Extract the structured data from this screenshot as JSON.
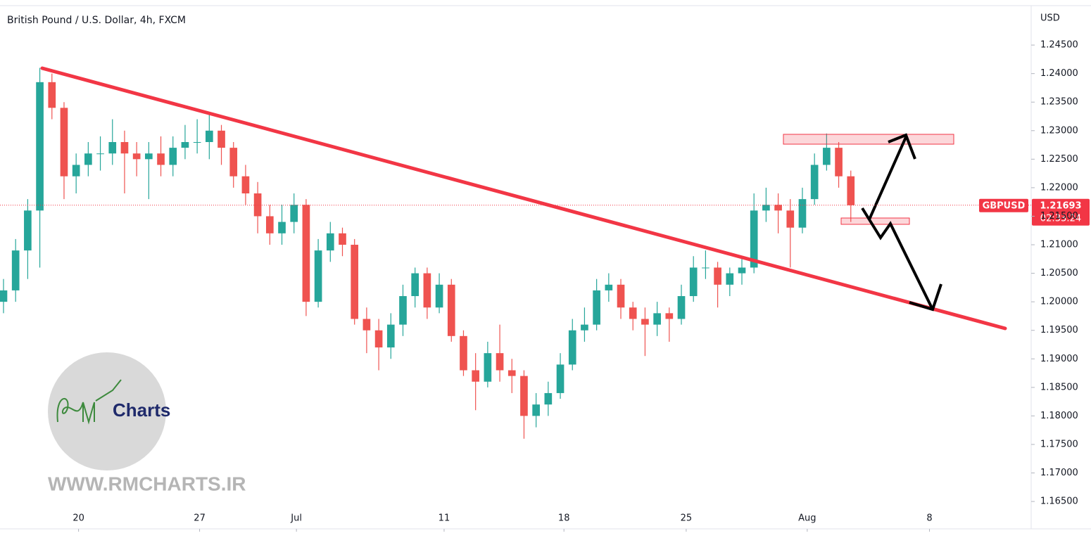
{
  "chart_data": {
    "type": "candlestick",
    "title": "British Pound / U.S. Dollar, 4h, FXCM",
    "y_axis_unit": "USD",
    "symbol": "GBPUSD",
    "countdown": "02:33:24",
    "logo_text": "Charts",
    "watermark": "WWW.RMCHARTS.IR",
    "up_color": "#26a69a",
    "down_color": "#ef5350",
    "grid": false,
    "xlim": [
      -0.29,
      84.9
    ],
    "xticks": [
      {
        "value": 6.2,
        "label": "20"
      },
      {
        "value": 16.2,
        "label": "27"
      },
      {
        "value": 24.2,
        "label": "Jul"
      },
      {
        "value": 36.4,
        "label": "11"
      },
      {
        "value": 46.3,
        "label": "18"
      },
      {
        "value": 56.4,
        "label": "25"
      },
      {
        "value": 66.4,
        "label": "Aug"
      },
      {
        "value": 76.5,
        "label": "8"
      }
    ],
    "ylim": [
      1.1639,
      1.2529
    ],
    "yticks": [
      {
        "value": 1.245,
        "label": "1.24500"
      },
      {
        "value": 1.24,
        "label": "1.24000"
      },
      {
        "value": 1.235,
        "label": "1.23500"
      },
      {
        "value": 1.23,
        "label": "1.23000"
      },
      {
        "value": 1.225,
        "label": "1.22500"
      },
      {
        "value": 1.22,
        "label": "1.22000"
      },
      {
        "value": 1.215,
        "label": "1.21500"
      },
      {
        "value": 1.21,
        "label": "1.21000"
      },
      {
        "value": 1.205,
        "label": "1.20500"
      },
      {
        "value": 1.2,
        "label": "1.20000"
      },
      {
        "value": 1.195,
        "label": "1.19500"
      },
      {
        "value": 1.19,
        "label": "1.19000"
      },
      {
        "value": 1.185,
        "label": "1.18500"
      },
      {
        "value": 1.18,
        "label": "1.18000"
      },
      {
        "value": 1.175,
        "label": "1.17500"
      },
      {
        "value": 1.17,
        "label": "1.17000"
      },
      {
        "value": 1.165,
        "label": "1.16500"
      }
    ],
    "series": [
      {
        "name": "GBPUSD",
        "open": [
          1.2,
          1.202,
          1.209,
          1.216,
          1.2385,
          1.234,
          1.222,
          1.224,
          1.226,
          1.226,
          1.228,
          1.226,
          1.225,
          1.226,
          1.224,
          1.227,
          1.228,
          1.228,
          1.23,
          1.227,
          1.222,
          1.219,
          1.215,
          1.212,
          1.214,
          1.217,
          1.2,
          1.209,
          1.212,
          1.21,
          1.197,
          1.195,
          1.192,
          1.196,
          1.201,
          1.205,
          1.199,
          1.203,
          1.194,
          1.188,
          1.186,
          1.191,
          1.188,
          1.187,
          1.18,
          1.182,
          1.184,
          1.189,
          1.195,
          1.196,
          1.202,
          1.203,
          1.199,
          1.197,
          1.196,
          1.198,
          1.197,
          1.201,
          1.206,
          1.206,
          1.203,
          1.205,
          1.206,
          1.216,
          1.217,
          1.216,
          1.213,
          1.218,
          1.224,
          1.227,
          1.222
        ],
        "high": [
          1.204,
          1.211,
          1.218,
          1.241,
          1.24,
          1.235,
          1.226,
          1.228,
          1.229,
          1.232,
          1.23,
          1.228,
          1.228,
          1.229,
          1.229,
          1.231,
          1.232,
          1.233,
          1.231,
          1.228,
          1.224,
          1.221,
          1.217,
          1.217,
          1.219,
          1.218,
          1.211,
          1.214,
          1.213,
          1.211,
          1.199,
          1.197,
          1.198,
          1.203,
          1.206,
          1.206,
          1.205,
          1.204,
          1.195,
          1.191,
          1.193,
          1.196,
          1.19,
          1.188,
          1.184,
          1.186,
          1.191,
          1.197,
          1.199,
          1.204,
          1.205,
          1.204,
          1.2,
          1.199,
          1.2,
          1.199,
          1.203,
          1.208,
          1.209,
          1.207,
          1.206,
          1.208,
          1.219,
          1.22,
          1.219,
          1.218,
          1.22,
          1.226,
          1.2295,
          1.228,
          1.223
        ],
        "low": [
          1.198,
          1.2,
          1.204,
          1.206,
          1.232,
          1.218,
          1.219,
          1.222,
          1.223,
          1.224,
          1.219,
          1.222,
          1.218,
          1.222,
          1.222,
          1.225,
          1.226,
          1.225,
          1.224,
          1.22,
          1.217,
          1.212,
          1.21,
          1.21,
          1.212,
          1.1975,
          1.199,
          1.207,
          1.208,
          1.196,
          1.191,
          1.188,
          1.19,
          1.194,
          1.199,
          1.197,
          1.198,
          1.193,
          1.187,
          1.181,
          1.185,
          1.186,
          1.184,
          1.176,
          1.178,
          1.18,
          1.183,
          1.188,
          1.193,
          1.195,
          1.2,
          1.197,
          1.195,
          1.1905,
          1.194,
          1.193,
          1.196,
          1.2,
          1.204,
          1.199,
          1.201,
          1.203,
          1.205,
          1.214,
          1.212,
          1.206,
          1.212,
          1.217,
          1.223,
          1.22,
          1.214
        ],
        "close": [
          1.202,
          1.209,
          1.216,
          1.2385,
          1.234,
          1.222,
          1.224,
          1.226,
          1.226,
          1.228,
          1.226,
          1.225,
          1.226,
          1.224,
          1.227,
          1.228,
          1.228,
          1.23,
          1.227,
          1.222,
          1.219,
          1.215,
          1.212,
          1.214,
          1.217,
          1.2,
          1.209,
          1.212,
          1.21,
          1.197,
          1.195,
          1.192,
          1.196,
          1.201,
          1.205,
          1.199,
          1.203,
          1.194,
          1.188,
          1.186,
          1.191,
          1.188,
          1.187,
          1.18,
          1.182,
          1.184,
          1.189,
          1.195,
          1.196,
          1.202,
          1.203,
          1.199,
          1.197,
          1.196,
          1.198,
          1.197,
          1.201,
          1.206,
          1.206,
          1.203,
          1.205,
          1.206,
          1.216,
          1.217,
          1.216,
          1.213,
          1.218,
          1.224,
          1.227,
          1.222,
          1.21693
        ]
      }
    ]
  }
}
